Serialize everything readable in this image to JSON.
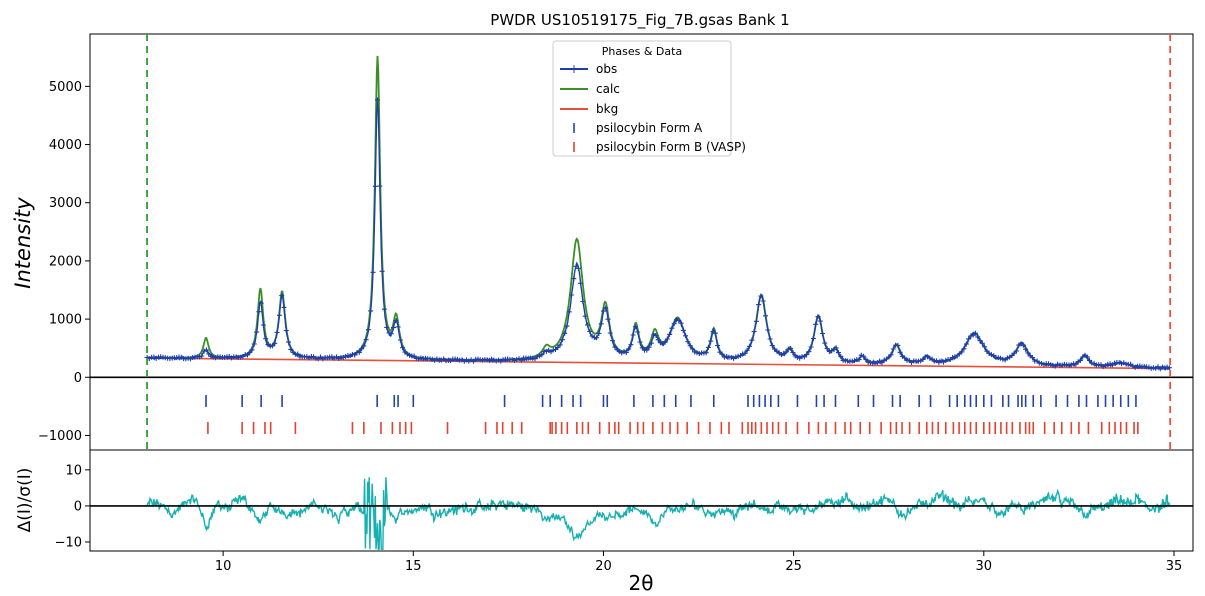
{
  "chart_data": {
    "type": "line",
    "title": "PWDR US10519175_Fig_7B.gsas Bank 1",
    "xlabel": "2θ",
    "ylabel": "Intensity",
    "ylabel_residual": "Δ(I)/σ(I)",
    "xlim": [
      6.5,
      35.5
    ],
    "ylim": [
      -1250,
      5900
    ],
    "residual_ylim": [
      -12.5,
      15.5
    ],
    "xticks": [
      10,
      15,
      20,
      25,
      30,
      35
    ],
    "yticks": [
      -1000,
      0,
      1000,
      2000,
      3000,
      4000,
      5000
    ],
    "residual_yticks": [
      -10,
      0,
      10
    ],
    "xtick_labels": [
      "10",
      "15",
      "20",
      "25",
      "30",
      "35"
    ],
    "ytick_labels": [
      "−1000",
      "0",
      "1000",
      "2000",
      "3000",
      "4000",
      "5000"
    ],
    "residual_ytick_labels": [
      "−10",
      "0",
      "10"
    ],
    "limits": {
      "lower": 8.0,
      "upper": 34.9,
      "lower_color": "#2ca02c",
      "upper_color": "#e8503a"
    },
    "legend": {
      "title": "Phases & Data",
      "placement": "top-center",
      "entries": [
        "obs",
        "calc",
        "bkg",
        "psilocybin Form A",
        "psilocybin Form B (VASP)"
      ]
    },
    "colors": {
      "obs": "#1f3fa8",
      "calc": "#3a8f25",
      "bkg": "#e8503a",
      "formA": "#2244aa",
      "formB": "#e8402a",
      "residual": "#17b0b0"
    },
    "background": {
      "x": [
        8.0,
        34.9
      ],
      "y": [
        330,
        150
      ]
    },
    "peaks": [
      {
        "pos": 9.55,
        "h_obs": 150,
        "h_calc": 350,
        "w": 0.08
      },
      {
        "pos": 10.98,
        "h_obs": 950,
        "h_calc": 1180,
        "w": 0.09
      },
      {
        "pos": 11.55,
        "h_obs": 1080,
        "h_calc": 1140,
        "w": 0.1
      },
      {
        "pos": 14.06,
        "h_obs": 4450,
        "h_calc": 5200,
        "w": 0.085
      },
      {
        "pos": 14.55,
        "h_obs": 560,
        "h_calc": 650,
        "w": 0.1
      },
      {
        "pos": 18.5,
        "h_obs": 80,
        "h_calc": 160,
        "w": 0.12
      },
      {
        "pos": 19.3,
        "h_obs": 1650,
        "h_calc": 2080,
        "w": 0.2
      },
      {
        "pos": 20.05,
        "h_obs": 830,
        "h_calc": 880,
        "w": 0.13
      },
      {
        "pos": 20.85,
        "h_obs": 530,
        "h_calc": 570,
        "w": 0.1
      },
      {
        "pos": 21.35,
        "h_obs": 330,
        "h_calc": 420,
        "w": 0.12
      },
      {
        "pos": 21.95,
        "h_obs": 720,
        "h_calc": 740,
        "w": 0.25
      },
      {
        "pos": 22.9,
        "h_obs": 500,
        "h_calc": 530,
        "w": 0.1
      },
      {
        "pos": 24.15,
        "h_obs": 1150,
        "h_calc": 1160,
        "w": 0.17
      },
      {
        "pos": 24.9,
        "h_obs": 180,
        "h_calc": 200,
        "w": 0.1
      },
      {
        "pos": 25.65,
        "h_obs": 800,
        "h_calc": 810,
        "w": 0.14
      },
      {
        "pos": 26.1,
        "h_obs": 200,
        "h_calc": 210,
        "w": 0.1
      },
      {
        "pos": 26.8,
        "h_obs": 120,
        "h_calc": 120,
        "w": 0.1
      },
      {
        "pos": 27.7,
        "h_obs": 330,
        "h_calc": 340,
        "w": 0.14
      },
      {
        "pos": 28.5,
        "h_obs": 130,
        "h_calc": 130,
        "w": 0.12
      },
      {
        "pos": 29.75,
        "h_obs": 550,
        "h_calc": 560,
        "w": 0.3
      },
      {
        "pos": 31.0,
        "h_obs": 370,
        "h_calc": 380,
        "w": 0.2
      },
      {
        "pos": 32.65,
        "h_obs": 200,
        "h_calc": 200,
        "w": 0.12
      },
      {
        "pos": 33.6,
        "h_obs": 80,
        "h_calc": 80,
        "w": 0.25
      }
    ],
    "formA_ticks": [
      9.55,
      10.5,
      11.0,
      11.55,
      14.05,
      14.5,
      14.6,
      15.0,
      17.4,
      18.4,
      18.6,
      18.9,
      19.2,
      19.4,
      20.0,
      20.1,
      20.8,
      21.3,
      21.6,
      21.9,
      22.3,
      22.9,
      23.8,
      23.95,
      24.1,
      24.25,
      24.4,
      24.6,
      25.1,
      25.6,
      25.8,
      26.1,
      26.7,
      27.1,
      27.6,
      27.8,
      28.3,
      28.6,
      29.1,
      29.3,
      29.5,
      29.65,
      29.8,
      30.0,
      30.2,
      30.5,
      30.65,
      30.9,
      31.0,
      31.1,
      31.3,
      31.5,
      31.9,
      32.2,
      32.5,
      32.7,
      33.0,
      33.2,
      33.4,
      33.6,
      33.8,
      34.0
    ],
    "formB_ticks": [
      9.6,
      10.5,
      10.8,
      11.1,
      11.25,
      11.9,
      13.4,
      13.7,
      14.15,
      14.45,
      14.65,
      14.8,
      14.95,
      15.9,
      16.9,
      17.2,
      17.35,
      17.6,
      17.85,
      18.6,
      18.65,
      18.75,
      18.9,
      19.05,
      19.3,
      19.45,
      19.6,
      19.9,
      20.15,
      20.3,
      20.4,
      20.7,
      20.9,
      21.05,
      21.3,
      21.55,
      21.75,
      21.95,
      22.2,
      22.5,
      22.8,
      23.1,
      23.3,
      23.65,
      23.8,
      23.9,
      24.0,
      24.15,
      24.3,
      24.45,
      24.6,
      24.8,
      25.1,
      25.4,
      25.65,
      25.85,
      26.1,
      26.35,
      26.5,
      26.75,
      27.0,
      27.3,
      27.55,
      27.7,
      27.85,
      28.05,
      28.3,
      28.5,
      28.65,
      28.8,
      29.0,
      29.2,
      29.35,
      29.5,
      29.65,
      29.8,
      30.0,
      30.15,
      30.3,
      30.45,
      30.6,
      30.75,
      30.95,
      31.1,
      31.2,
      31.3,
      31.6,
      31.85,
      32.05,
      32.3,
      32.5,
      32.75,
      33.1,
      33.3,
      33.45,
      33.6,
      33.75,
      33.95,
      34.05
    ]
  }
}
